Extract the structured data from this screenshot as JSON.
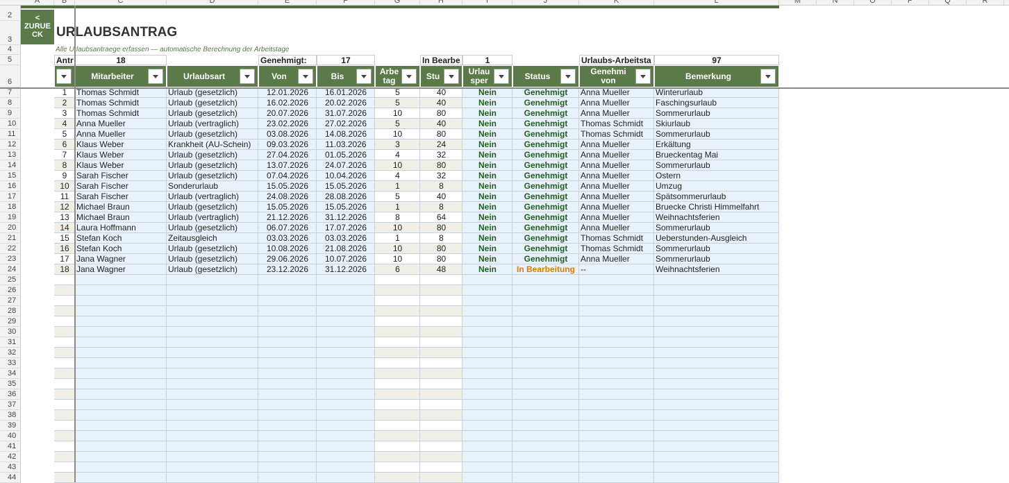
{
  "column_letters": [
    "A",
    "B",
    "C",
    "D",
    "E",
    "F",
    "G",
    "H",
    "I",
    "J",
    "K",
    "L",
    "M",
    "N",
    "O",
    "P",
    "Q",
    "R"
  ],
  "row_numbers": [
    2,
    3,
    4,
    5,
    6,
    7,
    8,
    9,
    10,
    11,
    12,
    13,
    14,
    15,
    16,
    17,
    18,
    19,
    20,
    21,
    22,
    23,
    24,
    25,
    26,
    27,
    28,
    29,
    30,
    31,
    32,
    33,
    34,
    35,
    36,
    37,
    38,
    39,
    40,
    41,
    42,
    43,
    44
  ],
  "back_button": {
    "lines": [
      "<",
      "ZURUE",
      "CK"
    ]
  },
  "header": {
    "title": "URLAUBSANTRAG",
    "subtitle": "Alle Urlaubsantraege erfassen — automatische Berechnung der Arbeitstage"
  },
  "summary": [
    {
      "label": "Antr",
      "value": 18
    },
    {
      "label": "Genehmigt:",
      "value": 17
    },
    {
      "label": "In Bearbe",
      "value": 1
    },
    {
      "label": "Urlaubs-Arbeitsta",
      "value": 97
    }
  ],
  "table": {
    "columns": [
      "Mitarbeiter",
      "Urlaubsart",
      "Von",
      "Bis",
      "Arbe\ntag",
      "Stu",
      "Urlau\nsper",
      "Status",
      "Genehmi\nvon",
      "Bemerkung"
    ],
    "rows": [
      [
        1,
        "Thomas Schmidt",
        "Urlaub (gesetzlich)",
        "12.01.2026",
        "16.01.2026",
        5,
        40,
        "Nein",
        "Genehmigt",
        "Anna Mueller",
        "Winterurlaub"
      ],
      [
        2,
        "Thomas Schmidt",
        "Urlaub (gesetzlich)",
        "16.02.2026",
        "20.02.2026",
        5,
        40,
        "Nein",
        "Genehmigt",
        "Anna Mueller",
        "Faschingsurlaub"
      ],
      [
        3,
        "Thomas Schmidt",
        "Urlaub (gesetzlich)",
        "20.07.2026",
        "31.07.2026",
        10,
        80,
        "Nein",
        "Genehmigt",
        "Anna Mueller",
        "Sommerurlaub"
      ],
      [
        4,
        "Anna Mueller",
        "Urlaub (vertraglich)",
        "23.02.2026",
        "27.02.2026",
        5,
        40,
        "Nein",
        "Genehmigt",
        "Thomas Schmidt",
        "Skiurlaub"
      ],
      [
        5,
        "Anna Mueller",
        "Urlaub (gesetzlich)",
        "03.08.2026",
        "14.08.2026",
        10,
        80,
        "Nein",
        "Genehmigt",
        "Thomas Schmidt",
        "Sommerurlaub"
      ],
      [
        6,
        "Klaus Weber",
        "Krankheit (AU-Schein)",
        "09.03.2026",
        "11.03.2026",
        3,
        24,
        "Nein",
        "Genehmigt",
        "Anna Mueller",
        "Erkältung"
      ],
      [
        7,
        "Klaus Weber",
        "Urlaub (gesetzlich)",
        "27.04.2026",
        "01.05.2026",
        4,
        32,
        "Nein",
        "Genehmigt",
        "Anna Mueller",
        "Brueckentag Mai"
      ],
      [
        8,
        "Klaus Weber",
        "Urlaub (gesetzlich)",
        "13.07.2026",
        "24.07.2026",
        10,
        80,
        "Nein",
        "Genehmigt",
        "Anna Mueller",
        "Sommerurlaub"
      ],
      [
        9,
        "Sarah Fischer",
        "Urlaub (gesetzlich)",
        "07.04.2026",
        "10.04.2026",
        4,
        32,
        "Nein",
        "Genehmigt",
        "Anna Mueller",
        "Ostern"
      ],
      [
        10,
        "Sarah Fischer",
        "Sonderurlaub",
        "15.05.2026",
        "15.05.2026",
        1,
        8,
        "Nein",
        "Genehmigt",
        "Anna Mueller",
        "Umzug"
      ],
      [
        11,
        "Sarah Fischer",
        "Urlaub (vertraglich)",
        "24.08.2026",
        "28.08.2026",
        5,
        40,
        "Nein",
        "Genehmigt",
        "Anna Mueller",
        "Spätsommerurlaub"
      ],
      [
        12,
        "Michael Braun",
        "Urlaub (gesetzlich)",
        "15.05.2026",
        "15.05.2026",
        1,
        8,
        "Nein",
        "Genehmigt",
        "Anna Mueller",
        "Bruecke Christi Himmelfahrt"
      ],
      [
        13,
        "Michael Braun",
        "Urlaub (vertraglich)",
        "21.12.2026",
        "31.12.2026",
        8,
        64,
        "Nein",
        "Genehmigt",
        "Anna Mueller",
        "Weihnachtsferien"
      ],
      [
        14,
        "Laura Hoffmann",
        "Urlaub (gesetzlich)",
        "06.07.2026",
        "17.07.2026",
        10,
        80,
        "Nein",
        "Genehmigt",
        "Anna Mueller",
        "Sommerurlaub"
      ],
      [
        15,
        "Stefan Koch",
        "Zeitausgleich",
        "03.03.2026",
        "03.03.2026",
        1,
        8,
        "Nein",
        "Genehmigt",
        "Thomas Schmidt",
        "Ueberstunden-Ausgleich"
      ],
      [
        16,
        "Stefan Koch",
        "Urlaub (gesetzlich)",
        "10.08.2026",
        "21.08.2026",
        10,
        80,
        "Nein",
        "Genehmigt",
        "Thomas Schmidt",
        "Sommerurlaub"
      ],
      [
        17,
        "Jana Wagner",
        "Urlaub (gesetzlich)",
        "29.06.2026",
        "10.07.2026",
        10,
        80,
        "Nein",
        "Genehmigt",
        "Anna Mueller",
        "Sommerurlaub"
      ],
      [
        18,
        "Jana Wagner",
        "Urlaub (gesetzlich)",
        "23.12.2026",
        "31.12.2026",
        6,
        48,
        "Nein",
        "In Bearbeitung",
        "--",
        "Weihnachtsferien"
      ]
    ]
  }
}
